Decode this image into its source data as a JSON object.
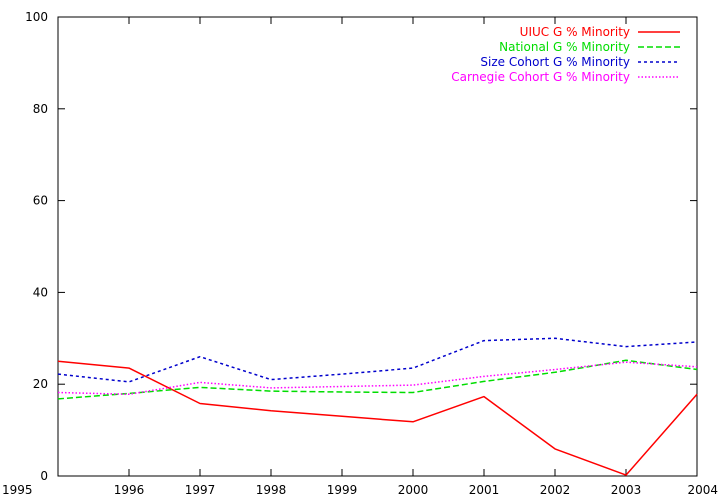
{
  "chart_data": {
    "type": "line",
    "title": "",
    "xlabel": "",
    "ylabel": "",
    "x": [
      1995,
      1996,
      1997,
      1998,
      1999,
      2000,
      2001,
      2002,
      2003,
      2004
    ],
    "xlim": [
      1995,
      2004
    ],
    "ylim": [
      0,
      100
    ],
    "x_ticks": [
      "1995",
      "1996",
      "1997",
      "1998",
      "1999",
      "2000",
      "2001",
      "2002",
      "2003",
      "2004"
    ],
    "y_ticks": [
      "0",
      "20",
      "40",
      "60",
      "80",
      "100"
    ],
    "grid": false,
    "legend_position": "top-right",
    "series": [
      {
        "name": "UIUC G % Minority",
        "color": "#ff0000",
        "dash": "solid",
        "values": [
          25,
          23.5,
          15.8,
          14.2,
          13,
          11.8,
          17.3,
          5.9,
          0.2,
          17.8
        ]
      },
      {
        "name": "National G % Minority",
        "color": "#00dd00",
        "dash": "dashed",
        "values": [
          16.8,
          18,
          19.3,
          18.5,
          18.3,
          18.2,
          20.6,
          22.6,
          25.2,
          23.2
        ]
      },
      {
        "name": "Size Cohort G % Minority",
        "color": "#0000cc",
        "dash": "dotted",
        "values": [
          22.2,
          20.5,
          26,
          21,
          22.2,
          23.5,
          29.5,
          30,
          28.2,
          29.2
        ]
      },
      {
        "name": "Carnegie Cohort G % Minority",
        "color": "#ff00ff",
        "dash": "fine-dotted",
        "values": [
          18.2,
          17.8,
          20.4,
          19.2,
          19.5,
          19.8,
          21.7,
          23.2,
          24.8,
          23.8
        ]
      }
    ]
  }
}
